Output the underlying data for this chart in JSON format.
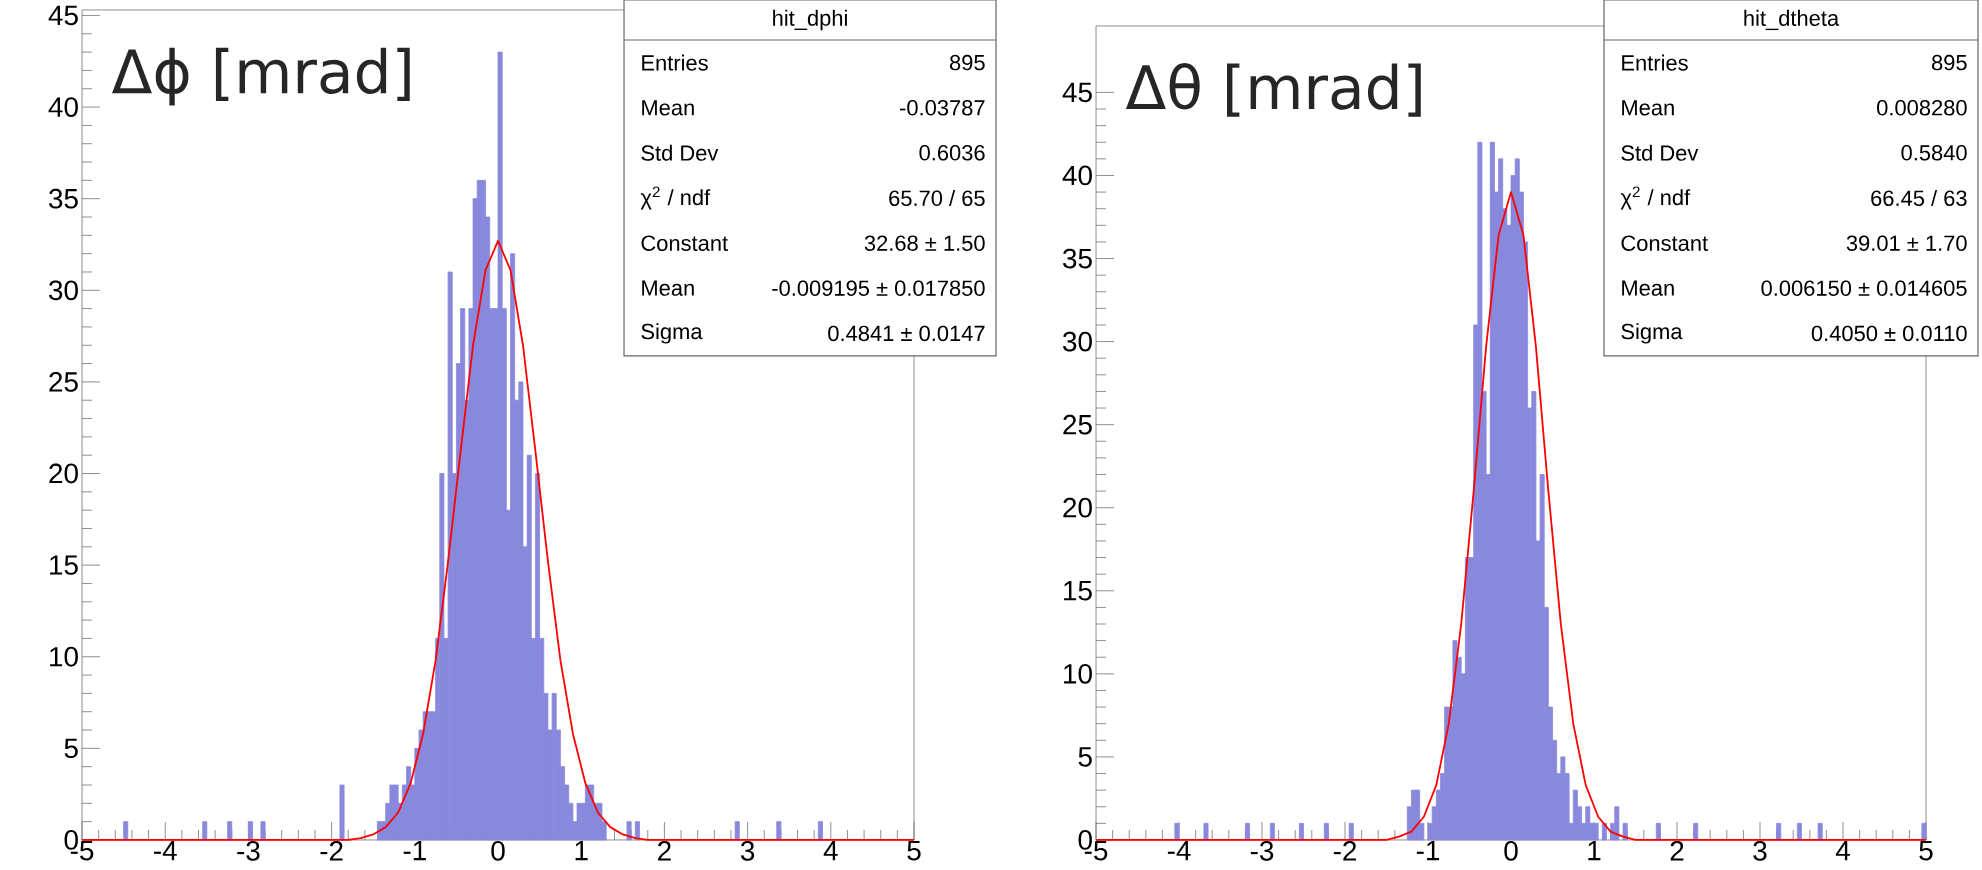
{
  "chart_data": [
    {
      "type": "histogram",
      "title": "Δϕ [mrad]",
      "xlim": [
        -5,
        5
      ],
      "ylim": [
        0,
        45.3
      ],
      "xticks": [
        -5,
        -4,
        -3,
        -2,
        -1,
        0,
        1,
        2,
        3,
        4,
        5
      ],
      "yticks": [
        0,
        5,
        10,
        15,
        20,
        25,
        30,
        35,
        40,
        45
      ],
      "series": [
        {
          "type": "histogram",
          "color": "#8888dd",
          "bins": [
            -5,
            -4.95,
            -4.9,
            -4.85,
            -4.8,
            -4.75,
            -4.7,
            -4.65,
            -4.6,
            -4.55,
            -4.5,
            -4.45,
            -4.4,
            -4.35,
            -4.3,
            -4.25,
            -4.2,
            -4.15,
            -4.1,
            -4.05,
            -4,
            -3.95,
            -3.9,
            -3.85,
            -3.8,
            -3.75,
            -3.7,
            -3.65,
            -3.6,
            -3.55,
            -3.5,
            -3.45,
            -3.4,
            -3.35,
            -3.3,
            -3.25,
            -3.2,
            -3.15,
            -3.1,
            -3.05,
            -3,
            -2.95,
            -2.9,
            -2.85,
            -2.8,
            -2.75,
            -2.7,
            -2.65,
            -2.6,
            -2.55,
            -2.5,
            -2.45,
            -2.4,
            -2.35,
            -2.3,
            -2.25,
            -2.2,
            -2.15,
            -2.1,
            -2.05,
            -2,
            -1.95,
            -1.9,
            -1.85,
            -1.8,
            -1.75,
            -1.7,
            -1.65,
            -1.6,
            -1.55,
            -1.5,
            -1.45,
            -1.4,
            -1.35,
            -1.3,
            -1.25,
            -1.2,
            -1.15,
            -1.1,
            -1.05,
            -1,
            -0.95,
            -0.9,
            -0.85,
            -0.8,
            -0.75,
            -0.7,
            -0.65,
            -0.6,
            -0.55,
            -0.5,
            -0.45,
            -0.4,
            -0.35,
            -0.3,
            -0.25,
            -0.2,
            -0.15,
            -0.1,
            -0.05,
            0,
            0.05,
            0.1,
            0.15,
            0.2,
            0.25,
            0.3,
            0.35,
            0.4,
            0.45,
            0.5,
            0.55,
            0.6,
            0.65,
            0.7,
            0.75,
            0.8,
            0.85,
            0.9,
            0.95,
            1,
            1.05,
            1.1,
            1.15,
            1.2,
            1.25,
            1.3,
            1.35,
            1.4,
            1.45,
            1.5,
            1.55,
            1.6,
            1.65,
            1.7,
            1.75,
            1.8,
            1.85,
            1.9,
            1.95,
            2,
            2.05,
            2.1,
            2.15,
            2.2,
            2.25,
            2.3,
            2.35,
            2.4,
            2.45,
            2.5,
            2.55,
            2.6,
            2.65,
            2.7,
            2.75,
            2.8,
            2.85,
            2.9,
            2.95,
            3,
            3.05,
            3.1,
            3.15,
            3.2,
            3.25,
            3.3,
            3.35,
            3.4,
            3.45,
            3.5,
            3.55,
            3.6,
            3.65,
            3.7,
            3.75,
            3.8,
            3.85,
            3.9,
            3.95,
            4,
            4.05,
            4.1,
            4.15,
            4.2,
            4.25,
            4.3,
            4.35,
            4.4,
            4.45,
            4.5,
            4.55,
            4.6,
            4.65,
            4.7,
            4.75,
            4.8,
            4.85,
            4.9,
            4.95,
            5
          ],
          "values": [
            0,
            0,
            0,
            0,
            0,
            0,
            0,
            0,
            0,
            0,
            1,
            0,
            0,
            0,
            0,
            0,
            0,
            0,
            0,
            0,
            0,
            0,
            0,
            0,
            0,
            0,
            0,
            0,
            0,
            1,
            0,
            0,
            0,
            0,
            0,
            1,
            0,
            0,
            0,
            0,
            1,
            0,
            0,
            1,
            0,
            0,
            0,
            0,
            0,
            0,
            0,
            0,
            0,
            0,
            0,
            0,
            0,
            0,
            0,
            0,
            0,
            0,
            3,
            0,
            0,
            0,
            0,
            0,
            0,
            0,
            0,
            1,
            1,
            2,
            3,
            3,
            2,
            3,
            4,
            3,
            5,
            6,
            7,
            7,
            7,
            11,
            20,
            11,
            31,
            20,
            26,
            29,
            24,
            29,
            35,
            36,
            36,
            34,
            29,
            29,
            43,
            29,
            18,
            32,
            24,
            25,
            16,
            21,
            11,
            20,
            11,
            8,
            6,
            8,
            6,
            4,
            3,
            2,
            1,
            2,
            2,
            3,
            3,
            2,
            2,
            1,
            0,
            0,
            0,
            0,
            0,
            1,
            0,
            1,
            0,
            0,
            0,
            0,
            0,
            0,
            0,
            0,
            0,
            0,
            0,
            0,
            0,
            0,
            0,
            0,
            0,
            0,
            0,
            0,
            0,
            0,
            0,
            1,
            0,
            0,
            0,
            0,
            0,
            0,
            0,
            0,
            0,
            1,
            0,
            0,
            0,
            0,
            0,
            0,
            0,
            0,
            0,
            1,
            0,
            0,
            0,
            0,
            0,
            0,
            0,
            0,
            0,
            0,
            0,
            0,
            0,
            0,
            0,
            0,
            0,
            0,
            0,
            0,
            0,
            0
          ]
        },
        {
          "type": "line",
          "color": "#ff0000",
          "x": [
            -5,
            -1.8,
            -1.65,
            -1.5,
            -1.35,
            -1.2,
            -1.05,
            -0.9,
            -0.75,
            -0.6,
            -0.45,
            -0.3,
            -0.15,
            0,
            0.15,
            0.3,
            0.45,
            0.6,
            0.75,
            0.9,
            1.05,
            1.2,
            1.35,
            1.5,
            1.65,
            1.8,
            5
          ],
          "values": [
            0,
            0,
            0.1,
            0.3,
            0.7,
            1.5,
            3.1,
            5.8,
            9.8,
            15.2,
            21.2,
            27.0,
            31.1,
            32.7,
            31.1,
            27.0,
            21.2,
            15.2,
            9.8,
            5.8,
            3.1,
            1.5,
            0.7,
            0.3,
            0.1,
            0,
            0
          ]
        }
      ],
      "annotations": [
        "hit_dphi",
        "Entries",
        "895",
        "Mean",
        "-0.03787",
        "Std Dev",
        "0.6036",
        "χ$^{2}$ / ndf",
        "65.70 / 65",
        "Constant",
        "32.68 ± 1.50",
        "Mean",
        "-0.009195 ± 0.017850",
        "Sigma",
        "0.4841 ± 0.0147"
      ]
    },
    {
      "type": "histogram",
      "title": "Δθ [mrad]",
      "xlim": [
        -5,
        5
      ],
      "ylim": [
        0,
        49
      ],
      "xticks": [
        -5,
        -4,
        -3,
        -2,
        -1,
        0,
        1,
        2,
        3,
        4,
        5
      ],
      "yticks": [
        0,
        5,
        10,
        15,
        20,
        25,
        30,
        35,
        40,
        45
      ],
      "series": [
        {
          "type": "histogram",
          "color": "#8888dd",
          "bins": [
            -5,
            -4.95,
            -4.9,
            -4.85,
            -4.8,
            -4.75,
            -4.7,
            -4.65,
            -4.6,
            -4.55,
            -4.5,
            -4.45,
            -4.4,
            -4.35,
            -4.3,
            -4.25,
            -4.2,
            -4.15,
            -4.1,
            -4.05,
            -4,
            -3.95,
            -3.9,
            -3.85,
            -3.8,
            -3.75,
            -3.7,
            -3.65,
            -3.6,
            -3.55,
            -3.5,
            -3.45,
            -3.4,
            -3.35,
            -3.3,
            -3.25,
            -3.2,
            -3.15,
            -3.1,
            -3.05,
            -3,
            -2.95,
            -2.9,
            -2.85,
            -2.8,
            -2.75,
            -2.7,
            -2.65,
            -2.6,
            -2.55,
            -2.5,
            -2.45,
            -2.4,
            -2.35,
            -2.3,
            -2.25,
            -2.2,
            -2.15,
            -2.1,
            -2.05,
            -2,
            -1.95,
            -1.9,
            -1.85,
            -1.8,
            -1.75,
            -1.7,
            -1.65,
            -1.6,
            -1.55,
            -1.5,
            -1.45,
            -1.4,
            -1.35,
            -1.3,
            -1.25,
            -1.2,
            -1.15,
            -1.1,
            -1.05,
            -1,
            -0.95,
            -0.9,
            -0.85,
            -0.8,
            -0.75,
            -0.7,
            -0.65,
            -0.6,
            -0.55,
            -0.5,
            -0.45,
            -0.4,
            -0.35,
            -0.3,
            -0.25,
            -0.2,
            -0.15,
            -0.1,
            -0.05,
            0,
            0.05,
            0.1,
            0.15,
            0.2,
            0.25,
            0.3,
            0.35,
            0.4,
            0.45,
            0.5,
            0.55,
            0.6,
            0.65,
            0.7,
            0.75,
            0.8,
            0.85,
            0.9,
            0.95,
            1,
            1.05,
            1.1,
            1.15,
            1.2,
            1.25,
            1.3,
            1.35,
            1.4,
            1.45,
            1.5,
            1.55,
            1.6,
            1.65,
            1.7,
            1.75,
            1.8,
            1.85,
            1.9,
            1.95,
            2,
            2.05,
            2.1,
            2.15,
            2.2,
            2.25,
            2.3,
            2.35,
            2.4,
            2.45,
            2.5,
            2.55,
            2.6,
            2.65,
            2.7,
            2.75,
            2.8,
            2.85,
            2.9,
            2.95,
            3,
            3.05,
            3.1,
            3.15,
            3.2,
            3.25,
            3.3,
            3.35,
            3.4,
            3.45,
            3.5,
            3.55,
            3.6,
            3.65,
            3.7,
            3.75,
            3.8,
            3.85,
            3.9,
            3.95,
            4,
            4.05,
            4.1,
            4.15,
            4.2,
            4.25,
            4.3,
            4.35,
            4.4,
            4.45,
            4.5,
            4.55,
            4.6,
            4.65,
            4.7,
            4.75,
            4.8,
            4.85,
            4.9,
            4.95,
            5
          ],
          "values": [
            0,
            0,
            0,
            0,
            0,
            0,
            0,
            0,
            0,
            0,
            0,
            0,
            0,
            0,
            0,
            0,
            0,
            0,
            0,
            1,
            0,
            0,
            0,
            0,
            0,
            0,
            1,
            0,
            0,
            0,
            0,
            0,
            0,
            0,
            0,
            0,
            1,
            0,
            0,
            0,
            0,
            0,
            1,
            0,
            0,
            0,
            0,
            0,
            0,
            1,
            0,
            0,
            0,
            0,
            0,
            1,
            0,
            0,
            0,
            0,
            0,
            1,
            0,
            0,
            0,
            0,
            0,
            0,
            0,
            0,
            0,
            0,
            0,
            0,
            0,
            2,
            3,
            3,
            1,
            0,
            1,
            2,
            3,
            4,
            8,
            8,
            12,
            11,
            10,
            17,
            17,
            31,
            42,
            27,
            22,
            42,
            39,
            41,
            38,
            37,
            40,
            41,
            39,
            36,
            26,
            27,
            18,
            22,
            14,
            8,
            6,
            4,
            5,
            4,
            1,
            3,
            2,
            1,
            2,
            1,
            1,
            0,
            1,
            0,
            1,
            2,
            0,
            1,
            0,
            0,
            0,
            0,
            0,
            0,
            0,
            1,
            0,
            0,
            0,
            0,
            0,
            0,
            0,
            0,
            1,
            0,
            0,
            0,
            0,
            0,
            0,
            0,
            0,
            0,
            0,
            0,
            0,
            0,
            0,
            0,
            0,
            0,
            0,
            0,
            1,
            0,
            0,
            0,
            0,
            1,
            0,
            0,
            0,
            0,
            1,
            0,
            0,
            0,
            0,
            0,
            0,
            0,
            0,
            0,
            0,
            0,
            0,
            0,
            0,
            0,
            0,
            0,
            0,
            0,
            0,
            0,
            0,
            0,
            0,
            1
          ]
        },
        {
          "type": "line",
          "color": "#ff0000",
          "x": [
            -5,
            -1.8,
            -1.65,
            -1.5,
            -1.35,
            -1.2,
            -1.05,
            -0.9,
            -0.75,
            -0.6,
            -0.45,
            -0.3,
            -0.15,
            0,
            0.15,
            0.3,
            0.45,
            0.6,
            0.75,
            0.9,
            1.05,
            1.2,
            1.35,
            1.5,
            1.65,
            1.8,
            5
          ],
          "values": [
            0,
            0,
            0,
            0,
            0.2,
            0.5,
            1.4,
            3.3,
            7.0,
            13.0,
            21.0,
            29.7,
            36.4,
            39.0,
            36.4,
            29.7,
            21.0,
            13.0,
            7.0,
            3.3,
            1.4,
            0.5,
            0.2,
            0,
            0,
            0,
            0
          ]
        }
      ],
      "annotations": [
        "hit_dtheta",
        "Entries",
        "895",
        "Mean",
        "0.008280",
        "Std Dev",
        "0.5840",
        "χ$^{2}$ / ndf",
        "66.45 / 63",
        "Constant",
        "39.01 ± 1.70",
        "Mean",
        "0.006150 ± 0.014605",
        "Sigma",
        "0.4050 ± 0.0110"
      ]
    }
  ]
}
